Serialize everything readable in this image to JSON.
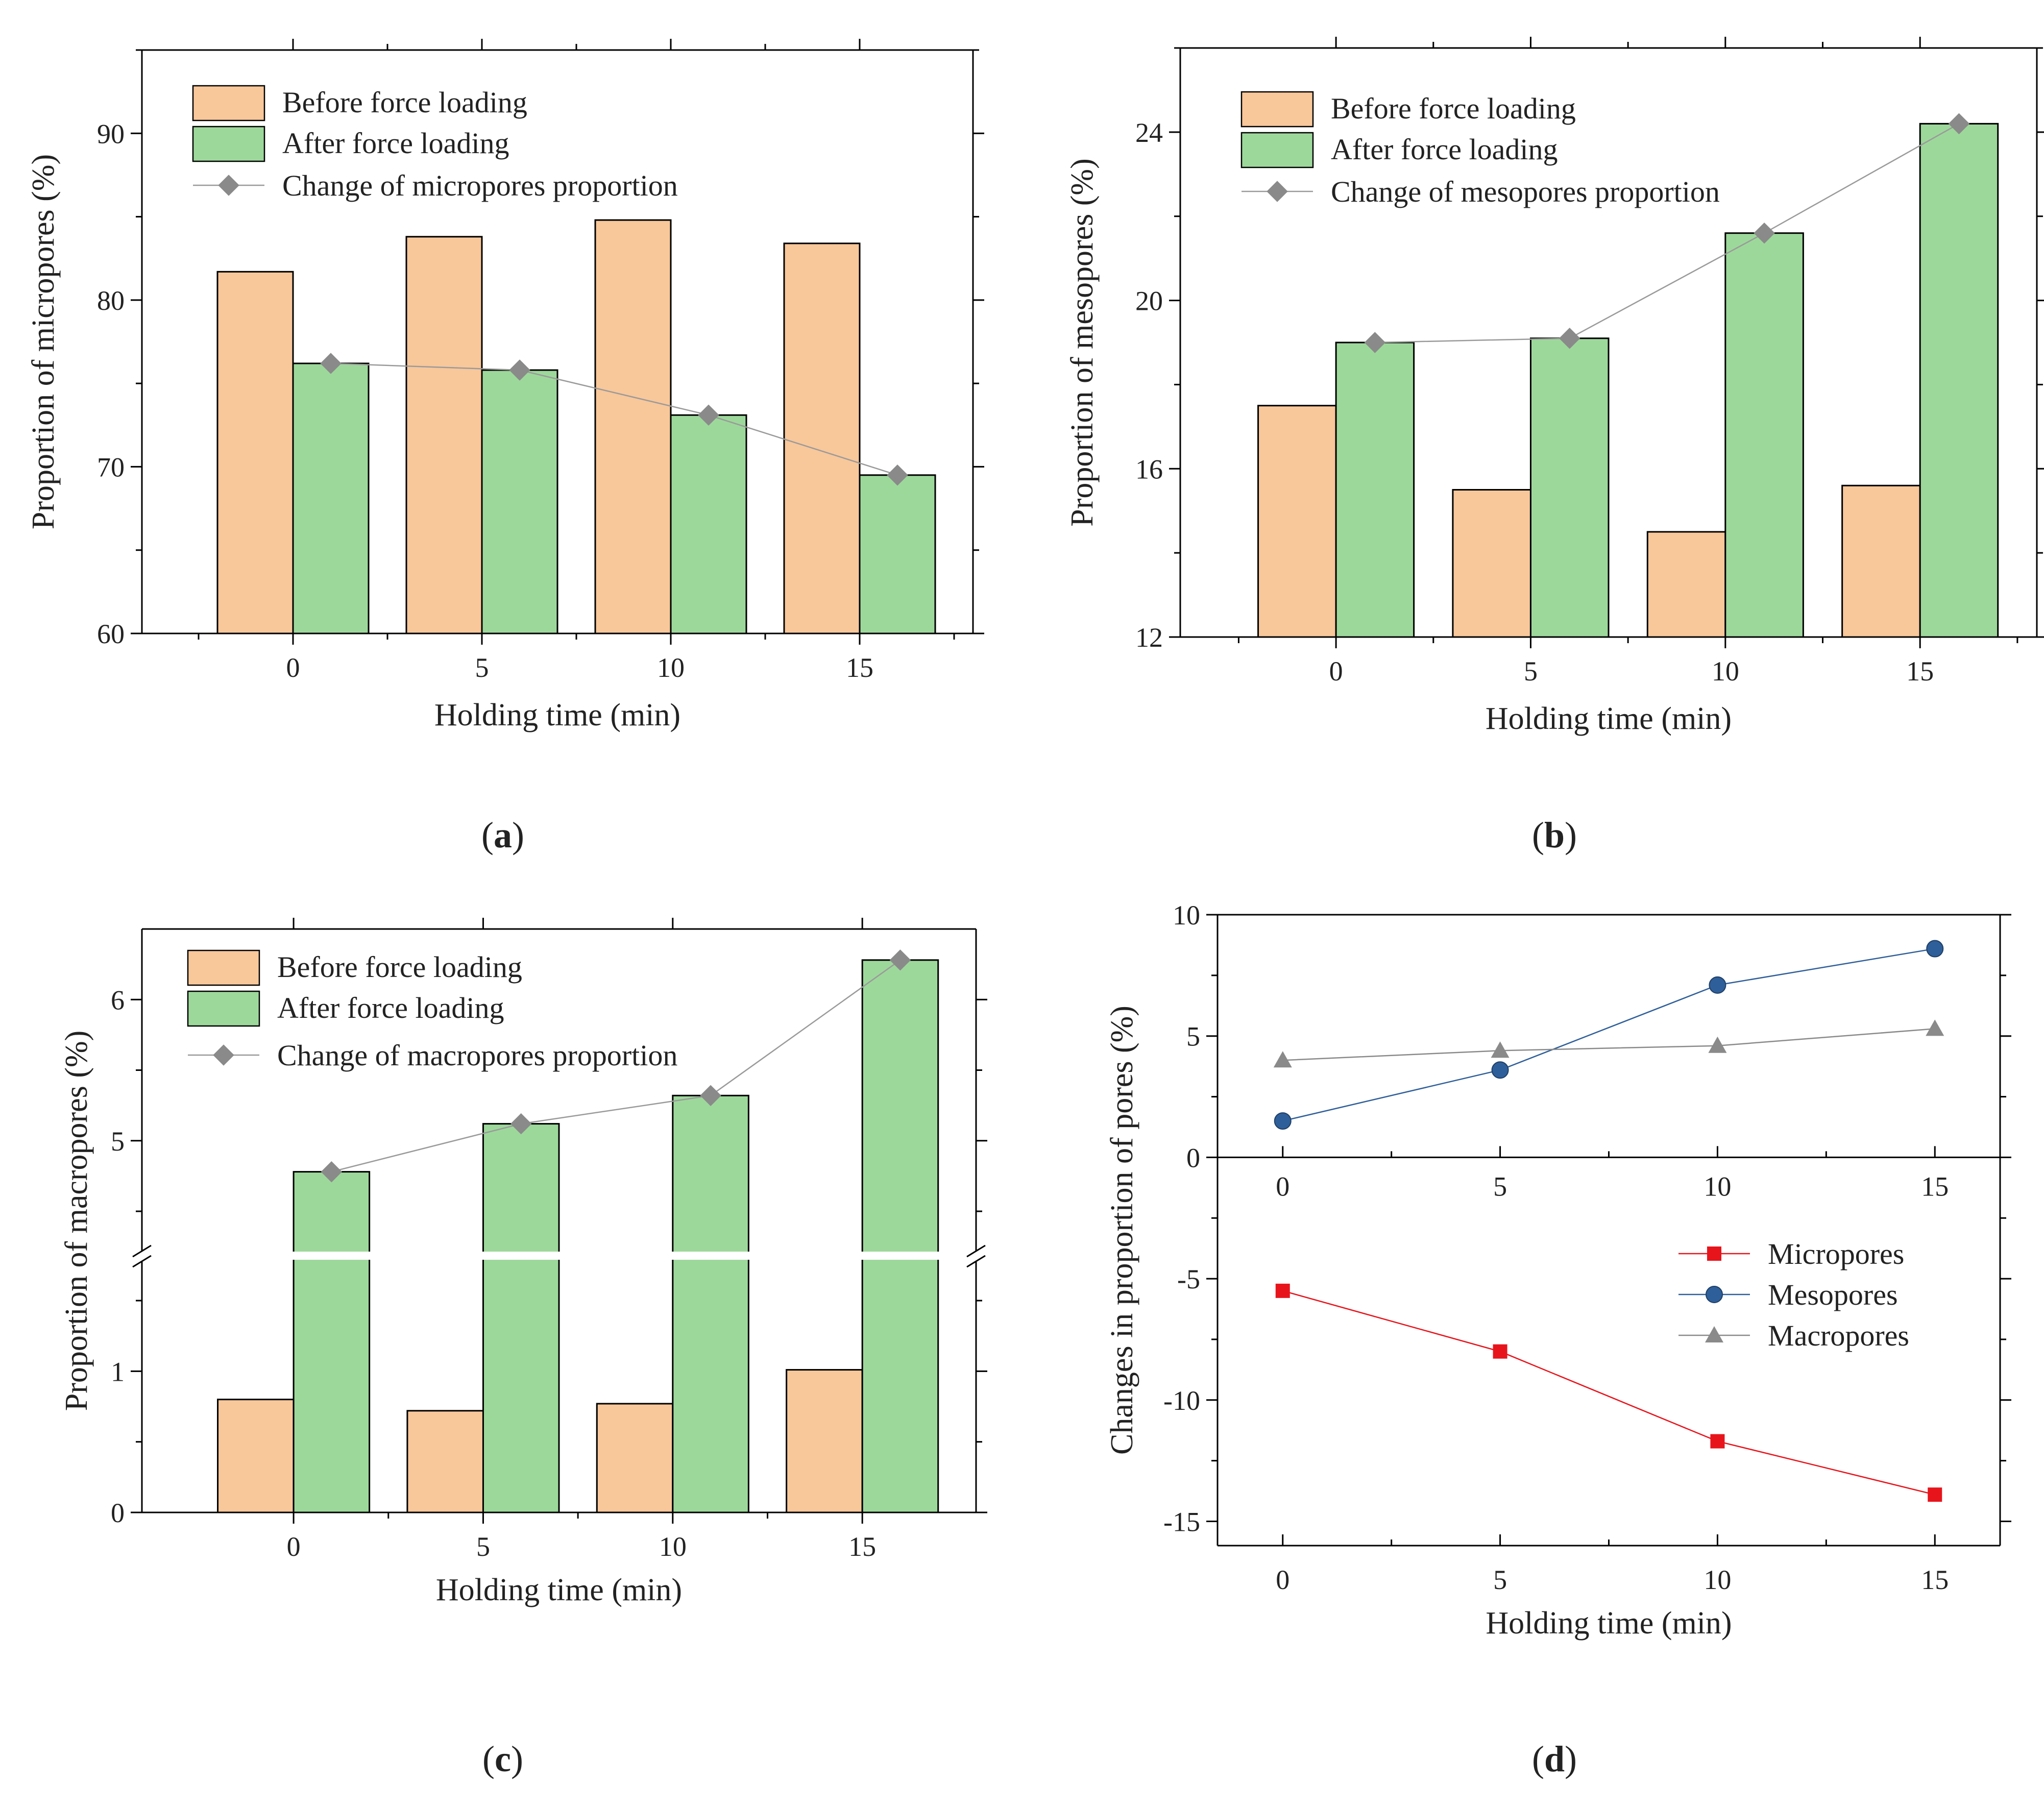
{
  "colors": {
    "before": "#f8c79a",
    "after": "#9dd89b",
    "change": "#8a8a8a",
    "micro": "#e8141c",
    "meso": "#2f5f9a",
    "macro": "#8a8a8a"
  },
  "chart_data": [
    {
      "type": "bar",
      "panel": "(a)",
      "panel_letter": "a",
      "xlabel": "Holding time (min)",
      "ylabel": "Proportion of micropores (%)",
      "categories": [
        "0",
        "5",
        "10",
        "15"
      ],
      "ylim": [
        60,
        95
      ],
      "yticks": [
        60,
        70,
        80,
        90
      ],
      "series": [
        {
          "name": "Before force loading",
          "kind": "bar",
          "values": [
            81.7,
            83.8,
            84.8,
            83.4
          ]
        },
        {
          "name": "After force loading",
          "kind": "bar",
          "values": [
            76.2,
            75.8,
            73.1,
            69.5
          ]
        },
        {
          "name": "Change of micropores proportion",
          "kind": "line",
          "values": [
            76.2,
            75.8,
            73.1,
            69.5
          ]
        }
      ]
    },
    {
      "type": "bar",
      "panel": "(b)",
      "panel_letter": "b",
      "xlabel": "Holding time (min)",
      "ylabel": "Proportion of mesopores (%)",
      "categories": [
        "0",
        "5",
        "10",
        "15"
      ],
      "ylim": [
        12,
        26
      ],
      "yticks": [
        12,
        16,
        20,
        24
      ],
      "series": [
        {
          "name": "Before force loading",
          "kind": "bar",
          "values": [
            17.5,
            15.5,
            14.5,
            15.6
          ]
        },
        {
          "name": "After force loading",
          "kind": "bar",
          "values": [
            19.0,
            19.1,
            21.6,
            24.2
          ]
        },
        {
          "name": "Change of mesopores proportion",
          "kind": "line",
          "values": [
            19.0,
            19.1,
            21.6,
            24.2
          ]
        }
      ]
    },
    {
      "type": "bar",
      "panel": "(c)",
      "panel_letter": "c",
      "xlabel": "Holding time (min)",
      "ylabel": "Proportion of macropores (%)",
      "categories": [
        "0",
        "5",
        "10",
        "15"
      ],
      "broken_axis": {
        "lower_range": [
          0,
          1.8
        ],
        "upper_range": [
          4.2,
          6.5
        ]
      },
      "yticks": [
        "0",
        "1",
        "5",
        "6"
      ],
      "series": [
        {
          "name": "Before force loading",
          "kind": "bar",
          "values": [
            0.8,
            0.72,
            0.77,
            1.01
          ]
        },
        {
          "name": "After force loading",
          "kind": "bar",
          "values": [
            4.78,
            5.12,
            5.32,
            6.28
          ]
        },
        {
          "name": "Change of macropores proportion",
          "kind": "line",
          "values": [
            4.78,
            5.12,
            5.32,
            6.28
          ]
        }
      ]
    },
    {
      "type": "line",
      "panel": "(d)",
      "panel_letter": "d",
      "xlabel": "Holding time (min)",
      "ylabel": "Changes in proportion of pores (%)",
      "x": [
        0,
        5,
        10,
        15
      ],
      "xlim": [
        -1.5,
        16.5
      ],
      "ylim": [
        -16,
        10
      ],
      "yticks": [
        "10",
        "5",
        "0",
        "-5",
        "-10",
        "-15"
      ],
      "xticks": [
        "0",
        "5",
        "10",
        "15"
      ],
      "series": [
        {
          "name": "Micropores",
          "marker": "square",
          "values": [
            -5.5,
            -8.0,
            -11.7,
            -13.9
          ]
        },
        {
          "name": "Mesopores",
          "marker": "circle",
          "values": [
            1.5,
            3.6,
            7.1,
            8.6
          ]
        },
        {
          "name": "Macropores",
          "marker": "triangle",
          "values": [
            4.0,
            4.4,
            4.6,
            5.3
          ]
        }
      ]
    }
  ]
}
